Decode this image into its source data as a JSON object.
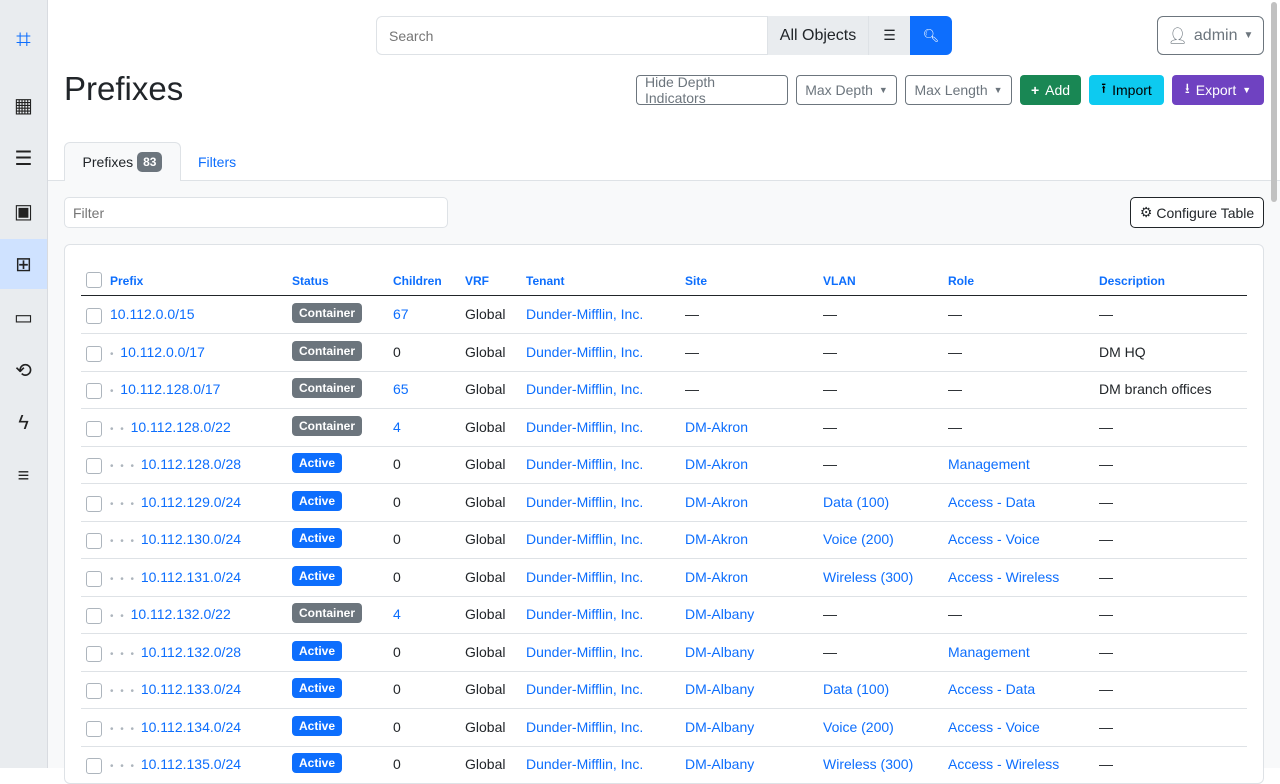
{
  "sidebar": {
    "items": [
      {
        "icon": "logo-icon",
        "glyph": "⌗"
      },
      {
        "icon": "building-icon",
        "glyph": "▦"
      },
      {
        "icon": "server-icon",
        "glyph": "☰"
      },
      {
        "icon": "ethernet-icon",
        "glyph": "▣"
      },
      {
        "icon": "ipam-icon",
        "glyph": "⊞",
        "active": true
      },
      {
        "icon": "monitor-icon",
        "glyph": "▭"
      },
      {
        "icon": "circuit-icon",
        "glyph": "⟲"
      },
      {
        "icon": "power-icon",
        "glyph": "ϟ"
      },
      {
        "icon": "other-icon",
        "glyph": "≡"
      }
    ]
  },
  "search": {
    "placeholder": "Search",
    "scope": "All Objects"
  },
  "user": {
    "label": "admin"
  },
  "page": {
    "title": "Prefixes"
  },
  "actions": {
    "hide_depth": "Hide Depth Indicators",
    "max_depth": "Max Depth",
    "max_length": "Max Length",
    "add": "Add",
    "import": "Import",
    "export": "Export"
  },
  "tabs": {
    "prefixes": "Prefixes",
    "count": "83",
    "filters": "Filters"
  },
  "filter": {
    "placeholder": "Filter"
  },
  "configure": "Configure Table",
  "colors": {
    "container": "#6c757d",
    "active": "#0d6efd"
  },
  "table": {
    "headers": [
      "Prefix",
      "Status",
      "Children",
      "VRF",
      "Tenant",
      "Site",
      "VLAN",
      "Role",
      "Description"
    ],
    "rows": [
      {
        "depth": 0,
        "prefix": "10.112.0.0/15",
        "status": "Container",
        "children": "67",
        "vrf": "Global",
        "tenant": "Dunder-Mifflin, Inc.",
        "site": "—",
        "vlan": "—",
        "role": "—",
        "description": "—"
      },
      {
        "depth": 1,
        "prefix": "10.112.0.0/17",
        "status": "Container",
        "children": "0",
        "vrf": "Global",
        "tenant": "Dunder-Mifflin, Inc.",
        "site": "—",
        "vlan": "—",
        "role": "—",
        "description": "DM HQ"
      },
      {
        "depth": 1,
        "prefix": "10.112.128.0/17",
        "status": "Container",
        "children": "65",
        "vrf": "Global",
        "tenant": "Dunder-Mifflin, Inc.",
        "site": "—",
        "vlan": "—",
        "role": "—",
        "description": "DM branch offices"
      },
      {
        "depth": 2,
        "prefix": "10.112.128.0/22",
        "status": "Container",
        "children": "4",
        "vrf": "Global",
        "tenant": "Dunder-Mifflin, Inc.",
        "site": "DM-Akron",
        "vlan": "—",
        "role": "—",
        "description": "—"
      },
      {
        "depth": 3,
        "prefix": "10.112.128.0/28",
        "status": "Active",
        "children": "0",
        "vrf": "Global",
        "tenant": "Dunder-Mifflin, Inc.",
        "site": "DM-Akron",
        "vlan": "—",
        "role": "Management",
        "description": "—"
      },
      {
        "depth": 3,
        "prefix": "10.112.129.0/24",
        "status": "Active",
        "children": "0",
        "vrf": "Global",
        "tenant": "Dunder-Mifflin, Inc.",
        "site": "DM-Akron",
        "vlan": "Data (100)",
        "role": "Access - Data",
        "description": "—"
      },
      {
        "depth": 3,
        "prefix": "10.112.130.0/24",
        "status": "Active",
        "children": "0",
        "vrf": "Global",
        "tenant": "Dunder-Mifflin, Inc.",
        "site": "DM-Akron",
        "vlan": "Voice (200)",
        "role": "Access - Voice",
        "description": "—"
      },
      {
        "depth": 3,
        "prefix": "10.112.131.0/24",
        "status": "Active",
        "children": "0",
        "vrf": "Global",
        "tenant": "Dunder-Mifflin, Inc.",
        "site": "DM-Akron",
        "vlan": "Wireless (300)",
        "role": "Access - Wireless",
        "description": "—"
      },
      {
        "depth": 2,
        "prefix": "10.112.132.0/22",
        "status": "Container",
        "children": "4",
        "vrf": "Global",
        "tenant": "Dunder-Mifflin, Inc.",
        "site": "DM-Albany",
        "vlan": "—",
        "role": "—",
        "description": "—"
      },
      {
        "depth": 3,
        "prefix": "10.112.132.0/28",
        "status": "Active",
        "children": "0",
        "vrf": "Global",
        "tenant": "Dunder-Mifflin, Inc.",
        "site": "DM-Albany",
        "vlan": "—",
        "role": "Management",
        "description": "—"
      },
      {
        "depth": 3,
        "prefix": "10.112.133.0/24",
        "status": "Active",
        "children": "0",
        "vrf": "Global",
        "tenant": "Dunder-Mifflin, Inc.",
        "site": "DM-Albany",
        "vlan": "Data (100)",
        "role": "Access - Data",
        "description": "—"
      },
      {
        "depth": 3,
        "prefix": "10.112.134.0/24",
        "status": "Active",
        "children": "0",
        "vrf": "Global",
        "tenant": "Dunder-Mifflin, Inc.",
        "site": "DM-Albany",
        "vlan": "Voice (200)",
        "role": "Access - Voice",
        "description": "—"
      },
      {
        "depth": 3,
        "prefix": "10.112.135.0/24",
        "status": "Active",
        "children": "0",
        "vrf": "Global",
        "tenant": "Dunder-Mifflin, Inc.",
        "site": "DM-Albany",
        "vlan": "Wireless (300)",
        "role": "Access - Wireless",
        "description": "—"
      }
    ]
  }
}
